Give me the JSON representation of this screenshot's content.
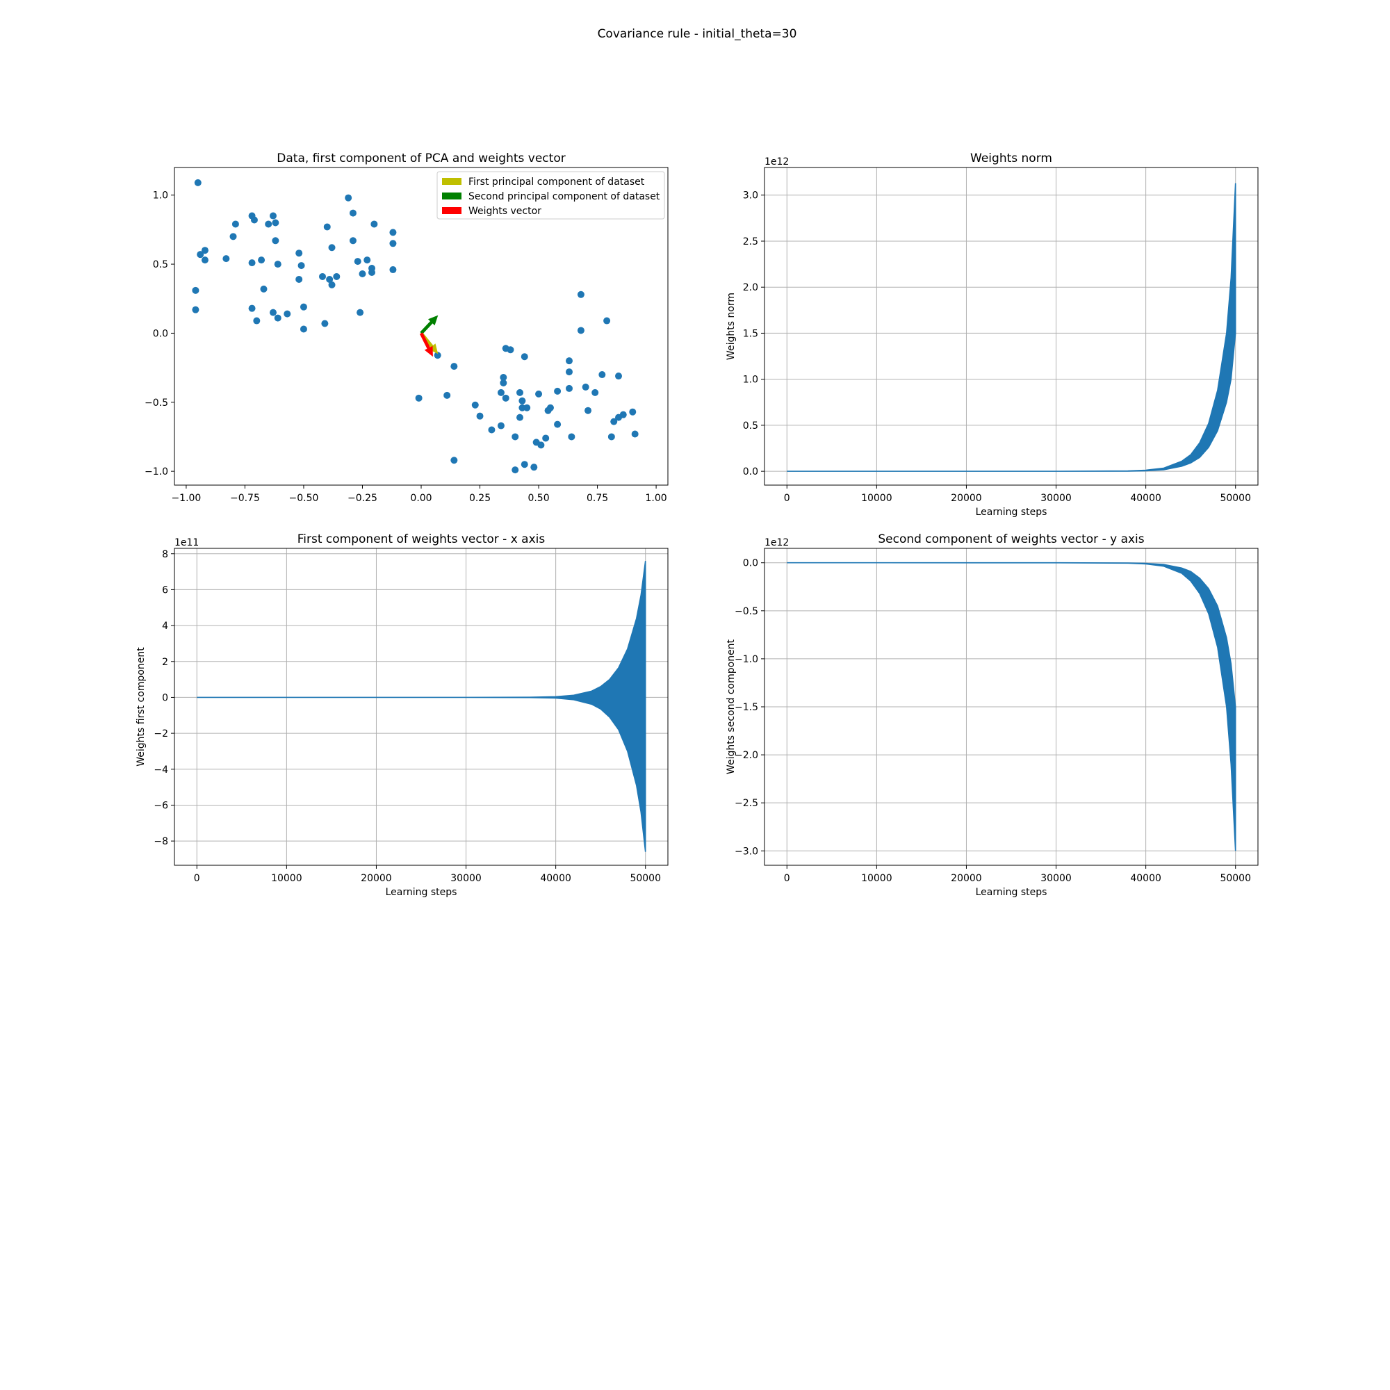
{
  "figure": {
    "suptitle": "Covariance rule - initial_theta=30"
  },
  "chart_data": [
    {
      "type": "scatter",
      "title": "Data, first component of PCA and weights vector",
      "xlabel": "",
      "ylabel": "",
      "xlim": [
        -1.05,
        1.05
      ],
      "ylim": [
        -1.1,
        1.2
      ],
      "xticks": [
        -1.0,
        -0.75,
        -0.5,
        -0.25,
        0.0,
        0.25,
        0.5,
        0.75,
        1.0
      ],
      "xtick_labels": [
        "−1.00",
        "−0.75",
        "−0.50",
        "−0.25",
        "0.00",
        "0.25",
        "0.50",
        "0.75",
        "1.00"
      ],
      "yticks": [
        -1.0,
        -0.5,
        0.0,
        0.5,
        1.0
      ],
      "ytick_labels": [
        "−1.0",
        "−0.5",
        "0.0",
        "0.5",
        "1.0"
      ],
      "grid": false,
      "point_color": "#1f77b4",
      "points": [
        [
          -0.95,
          1.09
        ],
        [
          -0.96,
          0.31
        ],
        [
          -0.96,
          0.17
        ],
        [
          -0.94,
          0.57
        ],
        [
          -0.92,
          0.6
        ],
        [
          -0.92,
          0.53
        ],
        [
          -0.83,
          0.54
        ],
        [
          -0.8,
          0.7
        ],
        [
          -0.79,
          0.79
        ],
        [
          -0.72,
          0.85
        ],
        [
          -0.71,
          0.82
        ],
        [
          -0.72,
          0.51
        ],
        [
          -0.68,
          0.53
        ],
        [
          -0.72,
          0.18
        ],
        [
          -0.7,
          0.09
        ],
        [
          -0.67,
          0.32
        ],
        [
          -0.65,
          0.79
        ],
        [
          -0.63,
          0.85
        ],
        [
          -0.62,
          0.8
        ],
        [
          -0.62,
          0.67
        ],
        [
          -0.61,
          0.5
        ],
        [
          -0.63,
          0.15
        ],
        [
          -0.61,
          0.11
        ],
        [
          -0.57,
          0.14
        ],
        [
          -0.52,
          0.58
        ],
        [
          -0.51,
          0.49
        ],
        [
          -0.52,
          0.39
        ],
        [
          -0.5,
          0.19
        ],
        [
          -0.5,
          0.03
        ],
        [
          -0.42,
          0.41
        ],
        [
          -0.4,
          0.77
        ],
        [
          -0.38,
          0.62
        ],
        [
          -0.39,
          0.39
        ],
        [
          -0.38,
          0.35
        ],
        [
          -0.36,
          0.41
        ],
        [
          -0.41,
          0.07
        ],
        [
          -0.31,
          0.98
        ],
        [
          -0.29,
          0.87
        ],
        [
          -0.29,
          0.67
        ],
        [
          -0.27,
          0.52
        ],
        [
          -0.25,
          0.43
        ],
        [
          -0.23,
          0.53
        ],
        [
          -0.21,
          0.47
        ],
        [
          -0.21,
          0.44
        ],
        [
          -0.2,
          0.79
        ],
        [
          -0.26,
          0.15
        ],
        [
          -0.12,
          0.73
        ],
        [
          -0.12,
          0.65
        ],
        [
          -0.12,
          0.46
        ],
        [
          0.07,
          -0.16
        ],
        [
          -0.01,
          -0.47
        ],
        [
          0.11,
          -0.45
        ],
        [
          0.14,
          -0.24
        ],
        [
          0.14,
          -0.92
        ],
        [
          0.23,
          -0.52
        ],
        [
          0.25,
          -0.6
        ],
        [
          0.3,
          -0.7
        ],
        [
          0.34,
          -0.67
        ],
        [
          0.34,
          -0.43
        ],
        [
          0.35,
          -0.36
        ],
        [
          0.35,
          -0.32
        ],
        [
          0.36,
          -0.47
        ],
        [
          0.36,
          -0.11
        ],
        [
          0.38,
          -0.12
        ],
        [
          0.4,
          -0.75
        ],
        [
          0.4,
          -0.99
        ],
        [
          0.42,
          -0.43
        ],
        [
          0.42,
          -0.61
        ],
        [
          0.43,
          -0.49
        ],
        [
          0.43,
          -0.54
        ],
        [
          0.44,
          -0.95
        ],
        [
          0.44,
          -0.17
        ],
        [
          0.45,
          -0.54
        ],
        [
          0.48,
          -0.97
        ],
        [
          0.49,
          -0.79
        ],
        [
          0.5,
          -0.44
        ],
        [
          0.51,
          -0.81
        ],
        [
          0.53,
          -0.76
        ],
        [
          0.54,
          -0.56
        ],
        [
          0.55,
          -0.54
        ],
        [
          0.58,
          -0.66
        ],
        [
          0.58,
          -0.42
        ],
        [
          0.63,
          -0.28
        ],
        [
          0.63,
          -0.2
        ],
        [
          0.63,
          -0.4
        ],
        [
          0.64,
          -0.75
        ],
        [
          0.68,
          0.28
        ],
        [
          0.68,
          0.02
        ],
        [
          0.7,
          -0.39
        ],
        [
          0.71,
          -0.56
        ],
        [
          0.74,
          -0.43
        ],
        [
          0.77,
          -0.3
        ],
        [
          0.79,
          0.09
        ],
        [
          0.81,
          -0.75
        ],
        [
          0.82,
          -0.64
        ],
        [
          0.84,
          -0.31
        ],
        [
          0.84,
          -0.61
        ],
        [
          0.86,
          -0.59
        ],
        [
          0.9,
          -0.57
        ],
        [
          0.91,
          -0.73
        ]
      ],
      "arrows": [
        {
          "name": "First principal component of dataset",
          "color": "#bfbf00",
          "dx": 0.072,
          "dy": -0.15
        },
        {
          "name": "Second principal component of dataset",
          "color": "#008000",
          "dx": 0.072,
          "dy": 0.13
        },
        {
          "name": "Weights vector",
          "color": "#ff0000",
          "dx": 0.05,
          "dy": -0.17
        }
      ],
      "legend_position": "top-right"
    },
    {
      "type": "area",
      "title": "Weights norm",
      "xlabel": "Learning steps",
      "ylabel": "Weights norm",
      "offset_label": "1e12",
      "xlim": [
        -2500,
        52500
      ],
      "ylim": [
        -0.15,
        3.3
      ],
      "xticks": [
        0,
        10000,
        20000,
        30000,
        40000,
        50000
      ],
      "xtick_labels": [
        "0",
        "10000",
        "20000",
        "30000",
        "40000",
        "50000"
      ],
      "yticks": [
        0.0,
        0.5,
        1.0,
        1.5,
        2.0,
        2.5,
        3.0
      ],
      "ytick_labels": [
        "0.0",
        "0.5",
        "1.0",
        "1.5",
        "2.0",
        "2.5",
        "3.0"
      ],
      "grid": true,
      "series_color": "#1f77b4",
      "envelope": {
        "x": [
          0,
          30000,
          38000,
          40000,
          42000,
          44000,
          45000,
          46000,
          47000,
          48000,
          49000,
          49500,
          50000
        ],
        "upper": [
          0,
          0.0002,
          0.004,
          0.012,
          0.035,
          0.11,
          0.18,
          0.31,
          0.52,
          0.88,
          1.5,
          2.1,
          3.13
        ],
        "lower": [
          0,
          0.0001,
          0.002,
          0.005,
          0.017,
          0.055,
          0.09,
          0.15,
          0.26,
          0.44,
          0.75,
          1.0,
          1.5
        ]
      }
    },
    {
      "type": "area",
      "title": "First component of weights vector - x axis",
      "xlabel": "Learning steps",
      "ylabel": "Weights first component",
      "offset_label": "1e11",
      "xlim": [
        -2500,
        52500
      ],
      "ylim": [
        -9.35,
        8.3
      ],
      "xticks": [
        0,
        10000,
        20000,
        30000,
        40000,
        50000
      ],
      "xtick_labels": [
        "0",
        "10000",
        "20000",
        "30000",
        "40000",
        "50000"
      ],
      "yticks": [
        -8,
        -6,
        -4,
        -2,
        0,
        2,
        4,
        6,
        8
      ],
      "ytick_labels": [
        "−8",
        "−6",
        "−4",
        "−2",
        "0",
        "2",
        "4",
        "6",
        "8"
      ],
      "grid": true,
      "series_color": "#1f77b4",
      "envelope": {
        "x": [
          0,
          30000,
          37000,
          40000,
          42000,
          44000,
          45000,
          46000,
          47000,
          48000,
          49000,
          49500,
          50000
        ],
        "upper": [
          0,
          0.001,
          0.01,
          0.04,
          0.12,
          0.35,
          0.6,
          1.0,
          1.65,
          2.7,
          4.4,
          5.7,
          7.6
        ],
        "lower": [
          0,
          -0.001,
          -0.01,
          -0.04,
          -0.13,
          -0.38,
          -0.65,
          -1.1,
          -1.8,
          -3.0,
          -4.9,
          -6.4,
          -8.6
        ]
      }
    },
    {
      "type": "area",
      "title": "Second component of weights vector - y axis",
      "xlabel": "Learning steps",
      "ylabel": "Weights second component",
      "offset_label": "1e12",
      "xlim": [
        -2500,
        52500
      ],
      "ylim": [
        -3.15,
        0.15
      ],
      "xticks": [
        0,
        10000,
        20000,
        30000,
        40000,
        50000
      ],
      "xtick_labels": [
        "0",
        "10000",
        "20000",
        "30000",
        "40000",
        "50000"
      ],
      "yticks": [
        -3.0,
        -2.5,
        -2.0,
        -1.5,
        -1.0,
        -0.5,
        0.0
      ],
      "ytick_labels": [
        "−3.0",
        "−2.5",
        "−2.0",
        "−1.5",
        "−1.0",
        "−0.5",
        "0.0"
      ],
      "grid": true,
      "series_color": "#1f77b4",
      "envelope": {
        "x": [
          0,
          30000,
          38000,
          40000,
          42000,
          44000,
          45000,
          46000,
          47000,
          48000,
          49000,
          49500,
          50000
        ],
        "upper": [
          0,
          -0.0001,
          -0.002,
          -0.006,
          -0.018,
          -0.055,
          -0.09,
          -0.16,
          -0.27,
          -0.45,
          -0.78,
          -1.05,
          -1.5
        ],
        "lower": [
          0,
          -0.0002,
          -0.004,
          -0.012,
          -0.036,
          -0.11,
          -0.19,
          -0.32,
          -0.53,
          -0.88,
          -1.5,
          -2.1,
          -3.0
        ]
      }
    }
  ]
}
